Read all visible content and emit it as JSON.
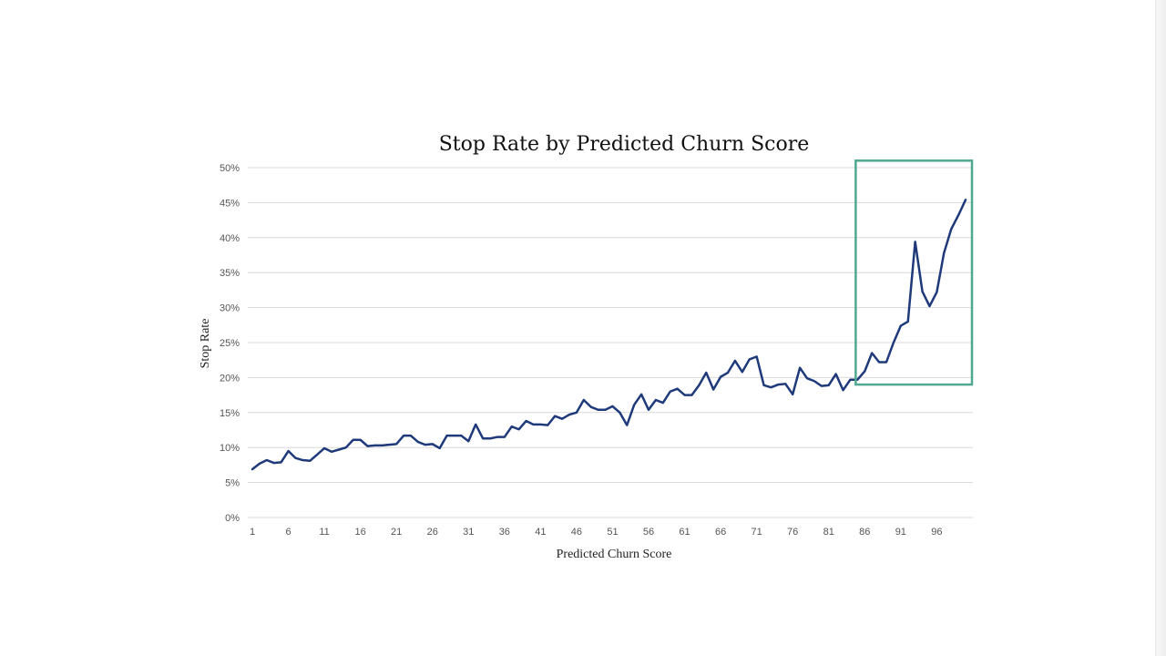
{
  "chart_data": {
    "type": "line",
    "title": "Stop Rate by Predicted Churn Score",
    "xlabel": "Predicted Churn Score",
    "ylabel": "Stop Rate",
    "xlim": [
      1,
      100
    ],
    "ylim": [
      0,
      0.5
    ],
    "x_tick_labels": [
      "1",
      "6",
      "11",
      "16",
      "21",
      "26",
      "31",
      "36",
      "41",
      "46",
      "51",
      "56",
      "61",
      "66",
      "71",
      "76",
      "81",
      "86",
      "91",
      "96"
    ],
    "y_tick_labels": [
      "0%",
      "5%",
      "10%",
      "15%",
      "20%",
      "25%",
      "30%",
      "35%",
      "40%",
      "45%",
      "50%"
    ],
    "grid": true,
    "legend": "none",
    "colors": {
      "series": "#1f3a7a",
      "highlight": "#4fa890",
      "gridline": "#d9d9d9"
    },
    "highlight": {
      "x_range": [
        85,
        100
      ],
      "y_range": [
        0.19,
        0.51
      ]
    },
    "series": [
      {
        "values": [
          0.069,
          0.077,
          0.082,
          0.078,
          0.079,
          0.095,
          0.085,
          0.082,
          0.081,
          0.09,
          0.099,
          0.094,
          0.097,
          0.1,
          0.111,
          0.111,
          0.102,
          0.103,
          0.103,
          0.104,
          0.105,
          0.117,
          0.117,
          0.108,
          0.104,
          0.105,
          0.099,
          0.117,
          0.117,
          0.117,
          0.109,
          0.133,
          0.113,
          0.113,
          0.115,
          0.115,
          0.13,
          0.126,
          0.138,
          0.133,
          0.133,
          0.132,
          0.145,
          0.141,
          0.147,
          0.15,
          0.168,
          0.158,
          0.154,
          0.154,
          0.159,
          0.15,
          0.132,
          0.161,
          0.176,
          0.154,
          0.168,
          0.164,
          0.18,
          0.184,
          0.175,
          0.175,
          0.189,
          0.207,
          0.183,
          0.201,
          0.207,
          0.224,
          0.208,
          0.226,
          0.23,
          0.189,
          0.186,
          0.19,
          0.191,
          0.176,
          0.214,
          0.199,
          0.195,
          0.188,
          0.189,
          0.205,
          0.182,
          0.197,
          0.197,
          0.209,
          0.235,
          0.222,
          0.222,
          0.25,
          0.274,
          0.28,
          0.394,
          0.323,
          0.302,
          0.322,
          0.378,
          0.412,
          0.432,
          0.454
        ]
      }
    ]
  }
}
